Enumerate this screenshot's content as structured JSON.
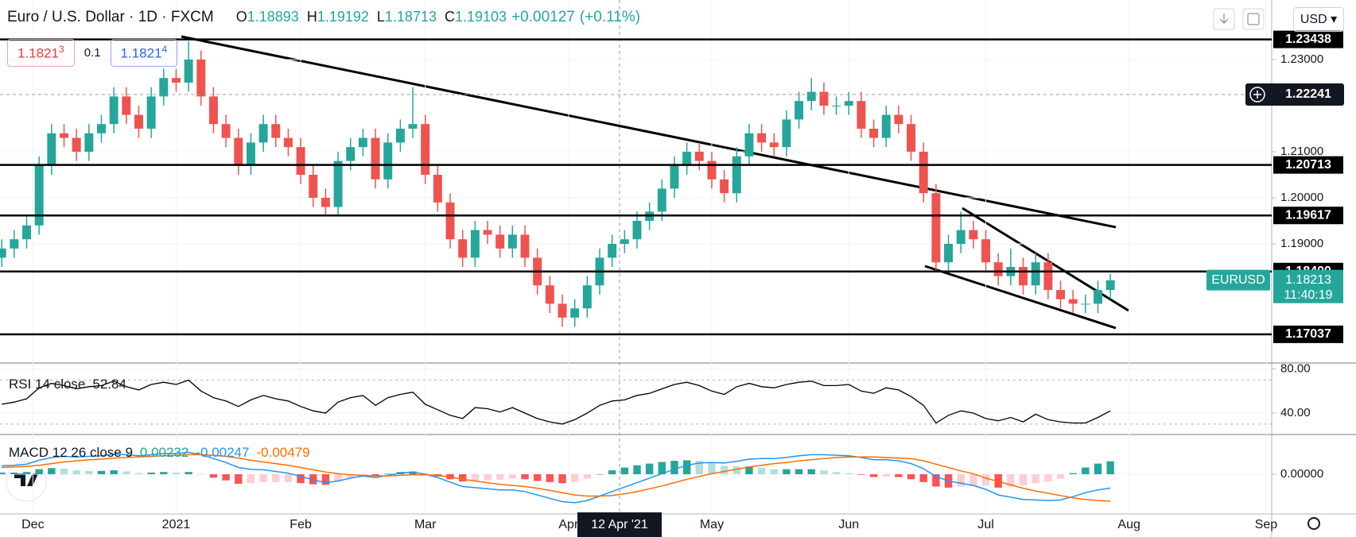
{
  "chart_data": [
    {
      "type": "candlestick",
      "title": "Euro / U.S. Dollar · 1D · FXCM",
      "ohlc_legend": [
        {
          "label": "O",
          "value": "1.18893"
        },
        {
          "label": "H",
          "value": "1.19192"
        },
        {
          "label": "L",
          "value": "1.18713"
        },
        {
          "label": "C",
          "value": "1.19103"
        }
      ],
      "change": "+0.00127",
      "change_pct": "(+0.11%)",
      "quote": {
        "sell": "1.1821",
        "sell_pip": "3",
        "spread": "0.1",
        "buy": "1.1821",
        "buy_pip": "4"
      },
      "currency": "USD",
      "symbol": "EURUSD",
      "last": 1.18213,
      "countdown": "11:40:19",
      "crosshair_price": 1.22241,
      "crosshair_date": "12 Apr '21",
      "levels": [
        1.23438,
        1.20713,
        1.19617,
        {
          "value": 1.184,
          "label": "1.18400"
        },
        1.17037
      ],
      "up_color": "#26a69a",
      "down_color": "#ef5350",
      "level_color": "#000000",
      "grid": true,
      "xlim": [
        -5.28,
        198.9
      ],
      "ylim": [
        1.16414,
        1.24293
      ],
      "xticks": [
        {
          "value": 0,
          "label": "Dec"
        },
        {
          "value": 23,
          "label": "2021"
        },
        {
          "value": 43,
          "label": "Feb"
        },
        {
          "value": 63,
          "label": "Mar"
        },
        {
          "value": 86,
          "label": "Apr"
        },
        {
          "value": 109,
          "label": "May"
        },
        {
          "value": 131,
          "label": "Jun"
        },
        {
          "value": 153,
          "label": "Jul"
        },
        {
          "value": 176,
          "label": "Aug"
        },
        {
          "value": 198,
          "label": "Sep"
        }
      ],
      "yticks": [
        {
          "value": 1.19,
          "label": "1.19000"
        },
        {
          "value": 1.2,
          "label": "1.20000"
        },
        {
          "value": 1.21,
          "label": "1.21000"
        },
        {
          "value": 1.23,
          "label": "1.23000"
        }
      ],
      "x": [
        -5,
        -3,
        -1,
        1,
        3,
        5,
        7,
        9,
        11,
        13,
        15,
        17,
        19,
        21,
        23,
        25,
        27,
        29,
        31,
        33,
        35,
        37,
        39,
        41,
        43,
        45,
        47,
        49,
        51,
        53,
        55,
        57,
        59,
        61,
        63,
        65,
        67,
        69,
        71,
        73,
        75,
        77,
        79,
        81,
        83,
        85,
        87,
        89,
        91,
        93,
        95,
        97,
        99,
        101,
        103,
        105,
        107,
        109,
        111,
        113,
        115,
        117,
        119,
        121,
        123,
        125,
        127,
        129,
        131,
        133,
        135,
        137,
        139,
        141,
        143,
        145,
        147,
        149,
        151,
        153,
        155,
        157,
        159,
        161,
        163,
        165,
        167,
        169,
        171,
        173
      ],
      "ohlc": [
        [
          1.187,
          1.191,
          1.185,
          1.189
        ],
        [
          1.189,
          1.193,
          1.187,
          1.191
        ],
        [
          1.191,
          1.196,
          1.189,
          1.194
        ],
        [
          1.194,
          1.209,
          1.192,
          1.207
        ],
        [
          1.207,
          1.216,
          1.205,
          1.214
        ],
        [
          1.214,
          1.216,
          1.211,
          1.213
        ],
        [
          1.213,
          1.215,
          1.208,
          1.21
        ],
        [
          1.21,
          1.216,
          1.208,
          1.214
        ],
        [
          1.214,
          1.218,
          1.212,
          1.216
        ],
        [
          1.216,
          1.224,
          1.214,
          1.222
        ],
        [
          1.222,
          1.224,
          1.216,
          1.218
        ],
        [
          1.218,
          1.22,
          1.213,
          1.215
        ],
        [
          1.215,
          1.224,
          1.213,
          1.222
        ],
        [
          1.222,
          1.228,
          1.22,
          1.226
        ],
        [
          1.226,
          1.228,
          1.223,
          1.225
        ],
        [
          1.225,
          1.234,
          1.223,
          1.23
        ],
        [
          1.23,
          1.232,
          1.22,
          1.222
        ],
        [
          1.222,
          1.224,
          1.214,
          1.216
        ],
        [
          1.216,
          1.218,
          1.211,
          1.213
        ],
        [
          1.213,
          1.215,
          1.205,
          1.207
        ],
        [
          1.207,
          1.214,
          1.205,
          1.212
        ],
        [
          1.212,
          1.218,
          1.21,
          1.216
        ],
        [
          1.216,
          1.218,
          1.211,
          1.213
        ],
        [
          1.213,
          1.215,
          1.209,
          1.211
        ],
        [
          1.211,
          1.213,
          1.203,
          1.205
        ],
        [
          1.205,
          1.207,
          1.198,
          1.2
        ],
        [
          1.2,
          1.202,
          1.196,
          1.198
        ],
        [
          1.198,
          1.21,
          1.196,
          1.208
        ],
        [
          1.208,
          1.213,
          1.206,
          1.211
        ],
        [
          1.211,
          1.215,
          1.209,
          1.213
        ],
        [
          1.213,
          1.215,
          1.202,
          1.204
        ],
        [
          1.204,
          1.214,
          1.202,
          1.212
        ],
        [
          1.212,
          1.217,
          1.21,
          1.215
        ],
        [
          1.215,
          1.224,
          1.213,
          1.216
        ],
        [
          1.216,
          1.218,
          1.203,
          1.205
        ],
        [
          1.205,
          1.207,
          1.197,
          1.199
        ],
        [
          1.199,
          1.201,
          1.189,
          1.191
        ],
        [
          1.191,
          1.193,
          1.185,
          1.187
        ],
        [
          1.187,
          1.195,
          1.185,
          1.193
        ],
        [
          1.193,
          1.195,
          1.19,
          1.192
        ],
        [
          1.192,
          1.194,
          1.187,
          1.189
        ],
        [
          1.189,
          1.194,
          1.187,
          1.192
        ],
        [
          1.192,
          1.194,
          1.185,
          1.187
        ],
        [
          1.187,
          1.189,
          1.179,
          1.181
        ],
        [
          1.181,
          1.183,
          1.175,
          1.177
        ],
        [
          1.177,
          1.179,
          1.172,
          1.174
        ],
        [
          1.174,
          1.178,
          1.172,
          1.176
        ],
        [
          1.176,
          1.183,
          1.174,
          1.181
        ],
        [
          1.181,
          1.189,
          1.179,
          1.187
        ],
        [
          1.187,
          1.192,
          1.185,
          1.19
        ],
        [
          1.19,
          1.193,
          1.188,
          1.191
        ],
        [
          1.191,
          1.197,
          1.189,
          1.195
        ],
        [
          1.195,
          1.199,
          1.193,
          1.197
        ],
        [
          1.197,
          1.204,
          1.195,
          1.202
        ],
        [
          1.202,
          1.209,
          1.2,
          1.207
        ],
        [
          1.207,
          1.212,
          1.205,
          1.21
        ],
        [
          1.21,
          1.212,
          1.206,
          1.208
        ],
        [
          1.208,
          1.21,
          1.202,
          1.204
        ],
        [
          1.204,
          1.206,
          1.199,
          1.201
        ],
        [
          1.201,
          1.211,
          1.199,
          1.209
        ],
        [
          1.209,
          1.216,
          1.207,
          1.214
        ],
        [
          1.214,
          1.216,
          1.21,
          1.212
        ],
        [
          1.212,
          1.214,
          1.209,
          1.211
        ],
        [
          1.211,
          1.219,
          1.209,
          1.217
        ],
        [
          1.217,
          1.223,
          1.215,
          1.221
        ],
        [
          1.221,
          1.226,
          1.219,
          1.223
        ],
        [
          1.223,
          1.225,
          1.218,
          1.22
        ],
        [
          1.22,
          1.222,
          1.218,
          1.22
        ],
        [
          1.22,
          1.223,
          1.218,
          1.221
        ],
        [
          1.221,
          1.223,
          1.213,
          1.215
        ],
        [
          1.215,
          1.217,
          1.211,
          1.213
        ],
        [
          1.213,
          1.22,
          1.211,
          1.218
        ],
        [
          1.218,
          1.22,
          1.214,
          1.216
        ],
        [
          1.216,
          1.218,
          1.208,
          1.21
        ],
        [
          1.21,
          1.212,
          1.199,
          1.201
        ],
        [
          1.201,
          1.203,
          1.184,
          1.186
        ],
        [
          1.186,
          1.192,
          1.184,
          1.19
        ],
        [
          1.19,
          1.197,
          1.188,
          1.193
        ],
        [
          1.193,
          1.195,
          1.189,
          1.191
        ],
        [
          1.191,
          1.193,
          1.184,
          1.186
        ],
        [
          1.186,
          1.188,
          1.181,
          1.183
        ],
        [
          1.183,
          1.189,
          1.181,
          1.185
        ],
        [
          1.185,
          1.187,
          1.179,
          1.181
        ],
        [
          1.181,
          1.188,
          1.179,
          1.186
        ],
        [
          1.186,
          1.188,
          1.178,
          1.18
        ],
        [
          1.18,
          1.182,
          1.176,
          1.178
        ],
        [
          1.178,
          1.18,
          1.175,
          1.177
        ],
        [
          1.177,
          1.179,
          1.175,
          1.177
        ],
        [
          1.177,
          1.182,
          1.175,
          1.18
        ],
        [
          1.18,
          1.1835,
          1.178,
          1.1821
        ]
      ]
    },
    {
      "type": "line",
      "title": "RSI 14 close",
      "current": 52.84,
      "color": "#000000",
      "ylim": [
        20.5,
        85.5
      ],
      "yticks": [
        {
          "value": 40,
          "label": "40.00"
        },
        {
          "value": 80,
          "label": "80.00"
        }
      ],
      "levels": [
        70,
        30
      ],
      "values": [
        48,
        50,
        53,
        63,
        67,
        65,
        62,
        64,
        65,
        69,
        64,
        61,
        66,
        68,
        66,
        70,
        60,
        54,
        51,
        46,
        52,
        56,
        53,
        51,
        46,
        42,
        40,
        50,
        54,
        56,
        47,
        54,
        57,
        59,
        48,
        43,
        38,
        35,
        45,
        44,
        41,
        45,
        40,
        35,
        32,
        30,
        34,
        40,
        47,
        51,
        52,
        56,
        58,
        62,
        66,
        68,
        65,
        60,
        57,
        64,
        67,
        64,
        63,
        66,
        68,
        69,
        65,
        65,
        66,
        60,
        58,
        63,
        61,
        55,
        47,
        31,
        38,
        42,
        40,
        35,
        33,
        36,
        32,
        39,
        34,
        32,
        31,
        31,
        36,
        42
      ]
    },
    {
      "type": "macd",
      "title": "MACD 12 26 close 9",
      "ylim": [
        -0.0071,
        0.0071
      ],
      "yticks": [
        {
          "value": 0,
          "label": "0.00000"
        }
      ],
      "hist_colors": [
        "#26a69a",
        "#b2dfdb",
        "#ffcdd2",
        "#ff5252"
      ],
      "series": [
        {
          "current": 0.00232,
          "values": [
            0.0003,
            0.0003,
            0.0004,
            0.0009,
            0.0011,
            0.001,
            0.0007,
            0.0006,
            0.0006,
            0.0007,
            0.0005,
            0.0002,
            0.0003,
            0.0004,
            0.0003,
            0.0004,
            0,
            -0.0006,
            -0.0011,
            -0.0017,
            -0.0016,
            -0.0014,
            -0.0014,
            -0.0014,
            -0.0016,
            -0.0018,
            -0.0019,
            -0.0013,
            -0.0006,
            -0.0001,
            -0.0003,
            0.0001,
            0.0004,
            0.0005,
            0.0001,
            -0.0004,
            -0.0009,
            -0.0013,
            -0.0012,
            -0.0011,
            -0.001,
            -0.0008,
            -0.0009,
            -0.0012,
            -0.0014,
            -0.0016,
            -0.0014,
            -0.0008,
            0,
            0.0007,
            0.0012,
            0.0016,
            0.0019,
            0.0022,
            0.0024,
            0.0025,
            0.0024,
            0.002,
            0.0015,
            0.0014,
            0.0014,
            0.0012,
            0.0009,
            0.0009,
            0.0009,
            0.0009,
            0.0007,
            0.0004,
            0.0002,
            -0.0001,
            -0.0005,
            -0.0004,
            -0.0005,
            -0.0009,
            -0.0014,
            -0.0022,
            -0.0024,
            -0.0022,
            -0.0021,
            -0.002,
            -0.0024,
            -0.0022,
            -0.002,
            -0.0016,
            -0.0013,
            -0.0008,
            0.0002,
            0.0012,
            0.0019,
            0.00232
          ]
        },
        {
          "current": -0.00247,
          "color": "#2196f3",
          "values": [
            0.0015,
            0.0016,
            0.0018,
            0.0025,
            0.003,
            0.0032,
            0.0031,
            0.0032,
            0.0033,
            0.0036,
            0.0035,
            0.0033,
            0.0035,
            0.0037,
            0.0037,
            0.0039,
            0.0035,
            0.0028,
            0.0021,
            0.0012,
            0.0009,
            0.0008,
            0.0005,
            0.0002,
            -0.0004,
            -0.001,
            -0.0015,
            -0.0012,
            -0.0007,
            -0.0003,
            -0.0006,
            -0.0002,
            0.0002,
            0.0004,
            0,
            -0.0006,
            -0.0014,
            -0.0022,
            -0.0024,
            -0.0026,
            -0.0028,
            -0.0028,
            -0.0031,
            -0.0037,
            -0.0043,
            -0.0049,
            -0.0051,
            -0.0047,
            -0.0039,
            -0.0031,
            -0.0023,
            -0.0015,
            -0.0007,
            0.0001,
            0.0009,
            0.0016,
            0.002,
            0.0021,
            0.002,
            0.0023,
            0.0027,
            0.0028,
            0.0028,
            0.003,
            0.0033,
            0.0035,
            0.0035,
            0.0034,
            0.0033,
            0.003,
            0.0026,
            0.0026,
            0.0024,
            0.0019,
            0.001,
            -0.0004,
            -0.0012,
            -0.0016,
            -0.002,
            -0.0027,
            -0.0037,
            -0.0041,
            -0.0045,
            -0.0046,
            -0.0047,
            -0.0046,
            -0.004,
            -0.0033,
            -0.0028,
            -0.00247
          ]
        },
        {
          "current": -0.00479,
          "color": "#ff6d00",
          "values": [
            0.0012,
            0.0013,
            0.0014,
            0.0016,
            0.0019,
            0.0022,
            0.0024,
            0.0026,
            0.0027,
            0.0029,
            0.003,
            0.0031,
            0.0032,
            0.0033,
            0.0034,
            0.0035,
            0.0035,
            0.0034,
            0.0032,
            0.0029,
            0.0025,
            0.0022,
            0.0019,
            0.0016,
            0.0012,
            0.0008,
            0.0004,
            0.0001,
            -0.0001,
            -0.0002,
            -0.0003,
            -0.0003,
            -0.0002,
            -0.0001,
            -0.0001,
            -0.0002,
            -0.0005,
            -0.0009,
            -0.0012,
            -0.0015,
            -0.0018,
            -0.002,
            -0.0022,
            -0.0025,
            -0.0029,
            -0.0033,
            -0.0037,
            -0.0039,
            -0.0039,
            -0.0038,
            -0.0035,
            -0.0031,
            -0.0026,
            -0.0021,
            -0.0015,
            -0.0009,
            -0.0004,
            0.0001,
            0.0005,
            0.0009,
            0.0013,
            0.0016,
            0.0019,
            0.0021,
            0.0024,
            0.0026,
            0.0028,
            0.003,
            0.0031,
            0.0031,
            0.0031,
            0.003,
            0.0029,
            0.0028,
            0.0024,
            0.0018,
            0.0012,
            0.0006,
            0.0001,
            -0.0007,
            -0.0013,
            -0.0019,
            -0.0025,
            -0.003,
            -0.0034,
            -0.0038,
            -0.0042,
            -0.0045,
            -0.0047,
            -0.00479
          ]
        }
      ]
    }
  ]
}
